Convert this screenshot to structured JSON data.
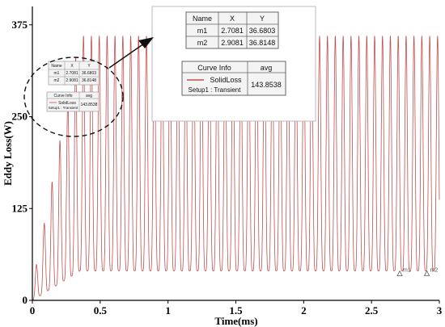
{
  "chart_data": {
    "type": "line",
    "xlabel": "Time(ms)",
    "ylabel": "Eddy Loss(W)",
    "xlim": [
      0,
      3
    ],
    "ylim": [
      0,
      400
    ],
    "x_ticks": [
      "0",
      "0.5",
      "1",
      "1.5",
      "2",
      "2.5",
      "3"
    ],
    "y_ticks": [
      "0",
      "125",
      "250",
      "375"
    ],
    "grid": false,
    "line_color": "#c0504d",
    "series": [
      {
        "name": "SolidLoss",
        "setup": "Setup1 : Transient",
        "waveform": {
          "period_ms": 0.058,
          "peak_start": 20,
          "peak": 360,
          "trough_start": 0,
          "trough_end": 40,
          "ramp_end_ms": 0.35
        }
      }
    ],
    "markers_table": {
      "headers": [
        "Name",
        "X",
        "Y"
      ],
      "rows": [
        [
          "m1",
          "2.7081",
          "36.6803"
        ],
        [
          "m2",
          "2.9081",
          "36.8148"
        ]
      ]
    },
    "curve_info": {
      "headers": [
        "Curve Info",
        "avg"
      ],
      "curve_name": "SolidLoss",
      "setup": "Setup1 : Transient",
      "avg": "143.8538"
    },
    "markers": [
      {
        "label": "m1",
        "x": 2.7081,
        "y": 36.6803
      },
      {
        "label": "m2",
        "x": 2.9081,
        "y": 36.8148
      }
    ]
  }
}
